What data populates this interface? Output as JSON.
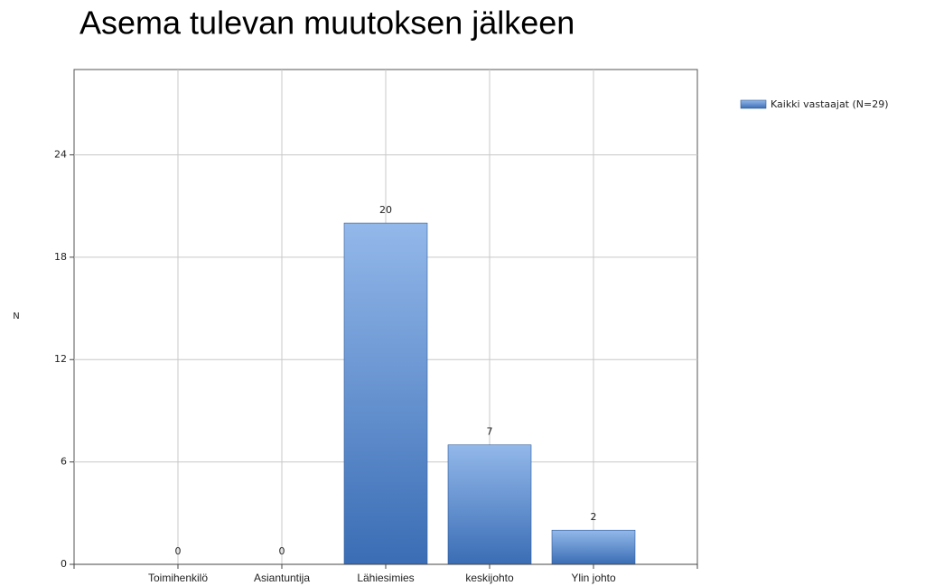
{
  "chart_data": {
    "type": "bar",
    "title": "Asema tulevan muutoksen jälkeen",
    "y_label": "N",
    "categories": [
      "Toimihenkilö",
      "Asiantuntija",
      "Lähiesimies",
      "keskijohto",
      "Ylin johto"
    ],
    "series": [
      {
        "name": "Kaikki vastaajat (N=29)",
        "color": "#3a6db5",
        "values": [
          0,
          0,
          20,
          7,
          2
        ]
      }
    ],
    "ylim": [
      0,
      29
    ],
    "yticks": [
      0,
      6,
      12,
      18,
      24
    ],
    "grid": true,
    "legend": "top-right"
  }
}
